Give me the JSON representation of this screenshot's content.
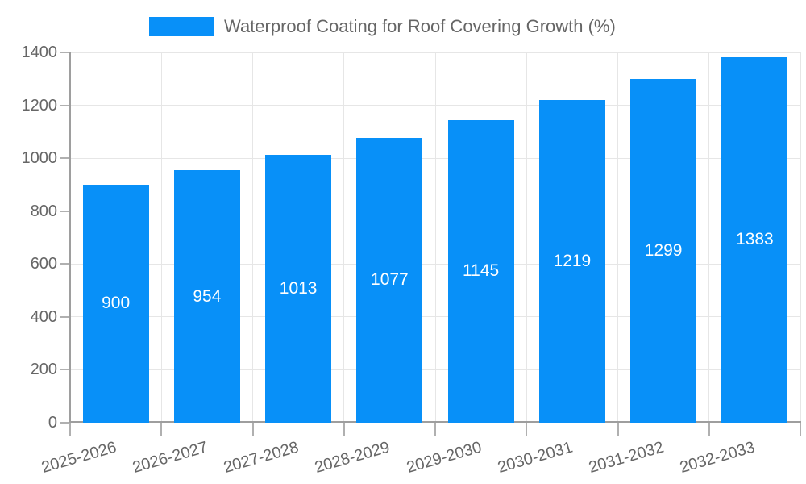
{
  "legend": {
    "label": "Waterproof Coating for Roof Covering Growth (%)"
  },
  "colors": {
    "bar": "#0890f8",
    "grid": "#e6e6e6",
    "axis": "#9e9e9e",
    "tick": "#b0b0b0",
    "text": "#666666",
    "bar_label": "#ffffff",
    "background": "#ffffff"
  },
  "chart_data": {
    "type": "bar",
    "title": "Waterproof Coating for Roof Covering Growth (%)",
    "series_name": "Waterproof Coating for Roof Covering Growth (%)",
    "categories": [
      "2025-2026",
      "2026-2027",
      "2027-2028",
      "2028-2029",
      "2029-2030",
      "2030-2031",
      "2031-2032",
      "2032-2033"
    ],
    "values": [
      900,
      954,
      1013,
      1077,
      1145,
      1219,
      1299,
      1383
    ],
    "xlabel": "",
    "ylabel": "",
    "ylim": [
      0,
      1400
    ],
    "yticks": [
      0,
      200,
      400,
      600,
      800,
      1000,
      1200,
      1400
    ],
    "grid": true,
    "legend_position": "top",
    "bar_value_labels": true,
    "x_label_rotation_deg": -16
  }
}
